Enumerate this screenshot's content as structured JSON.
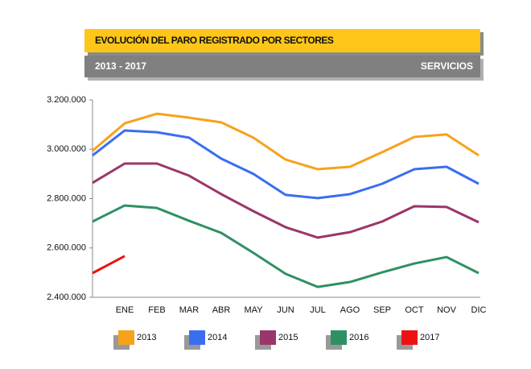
{
  "chart_data": {
    "type": "line",
    "title": "EVOLUCIÓN DEL PARO REGISTRADO POR SECTORES",
    "period": "2013 - 2017",
    "sector": "SERVICIOS",
    "categories": [
      null,
      "ENE",
      "FEB",
      "MAR",
      "ABR",
      "MAY",
      "JUN",
      "JUL",
      "AGO",
      "SEP",
      "OCT",
      "NOV",
      "DIC"
    ],
    "series": [
      {
        "name": "2013",
        "color": "#f7a21b",
        "values": [
          2994000,
          3105000,
          3144000,
          3128000,
          3109000,
          3047000,
          2958000,
          2919000,
          2929000,
          2988000,
          3050000,
          3060000,
          2975000
        ]
      },
      {
        "name": "2014",
        "color": "#3a6ef0",
        "values": [
          2975000,
          3076000,
          3069000,
          3047000,
          2962000,
          2900000,
          2815000,
          2802000,
          2818000,
          2860000,
          2919000,
          2929000,
          2860000
        ]
      },
      {
        "name": "2015",
        "color": "#9b3669",
        "values": [
          2864000,
          2942000,
          2942000,
          2893000,
          2818000,
          2749000,
          2684000,
          2642000,
          2664000,
          2707000,
          2769000,
          2766000,
          2704000
        ]
      },
      {
        "name": "2016",
        "color": "#2e9163",
        "values": [
          2707000,
          2772000,
          2762000,
          2710000,
          2661000,
          2580000,
          2495000,
          2442000,
          2462000,
          2501000,
          2537000,
          2563000,
          2498000
        ]
      },
      {
        "name": "2017",
        "color": "#ee1111",
        "values": [
          2498000,
          2567000,
          null,
          null,
          null,
          null,
          null,
          null,
          null,
          null,
          null,
          null,
          null
        ]
      }
    ],
    "ylim": [
      2400000,
      3200000
    ],
    "yticks": [
      {
        "value": 2400000,
        "label": "2.400.000"
      },
      {
        "value": 2600000,
        "label": "2.600.000"
      },
      {
        "value": 2800000,
        "label": "2.800.000"
      },
      {
        "value": 3000000,
        "label": "3.000.000"
      },
      {
        "value": 3200000,
        "label": "3.200.000"
      }
    ],
    "grid": false,
    "legend": "bottom"
  }
}
